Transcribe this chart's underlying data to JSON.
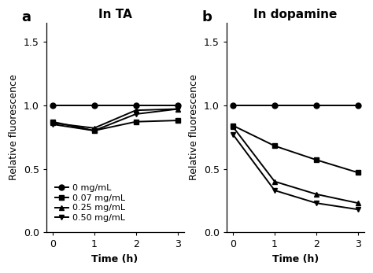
{
  "panel_a": {
    "title": "In TA",
    "xlabel": "Time (h)",
    "ylabel": "Relative fluorescence",
    "x": [
      0,
      1,
      2,
      3
    ],
    "series": [
      {
        "label": "0 mg/mL",
        "marker": "o",
        "values": [
          1.0,
          1.0,
          1.0,
          1.0
        ]
      },
      {
        "label": "0.07 mg/mL",
        "marker": "s",
        "values": [
          0.87,
          0.8,
          0.87,
          0.88
        ]
      },
      {
        "label": "0.25 mg/mL",
        "marker": "^",
        "values": [
          0.86,
          0.82,
          0.96,
          0.97
        ]
      },
      {
        "label": "0.50 mg/mL",
        "marker": "v",
        "values": [
          0.85,
          0.8,
          0.93,
          0.97
        ]
      }
    ],
    "ylim": [
      0.0,
      1.65
    ],
    "yticks": [
      0.0,
      0.5,
      1.0,
      1.5
    ],
    "xticks": [
      0,
      1,
      2,
      3
    ]
  },
  "panel_b": {
    "title": "In dopamine",
    "xlabel": "Time (h)",
    "ylabel": "Relative fluorescence",
    "x": [
      0,
      1,
      2,
      3
    ],
    "series": [
      {
        "label": "0 mg/mL",
        "marker": "o",
        "values": [
          1.0,
          1.0,
          1.0,
          1.0
        ]
      },
      {
        "label": "0.07 mg/mL",
        "marker": "s",
        "values": [
          0.84,
          0.68,
          0.57,
          0.47
        ]
      },
      {
        "label": "0.25 mg/mL",
        "marker": "^",
        "values": [
          0.83,
          0.4,
          0.3,
          0.23
        ]
      },
      {
        "label": "0.50 mg/mL",
        "marker": "v",
        "values": [
          0.77,
          0.33,
          0.23,
          0.18
        ]
      }
    ],
    "ylim": [
      0.0,
      1.65
    ],
    "yticks": [
      0.0,
      0.5,
      1.0,
      1.5
    ],
    "xticks": [
      0,
      1,
      2,
      3
    ]
  },
  "line_color": "#000000",
  "markersize": 5,
  "linewidth": 1.4,
  "label_fontsize": 9,
  "title_fontsize": 11,
  "tick_fontsize": 9,
  "panel_label_fontsize": 13,
  "legend_fontsize": 8
}
